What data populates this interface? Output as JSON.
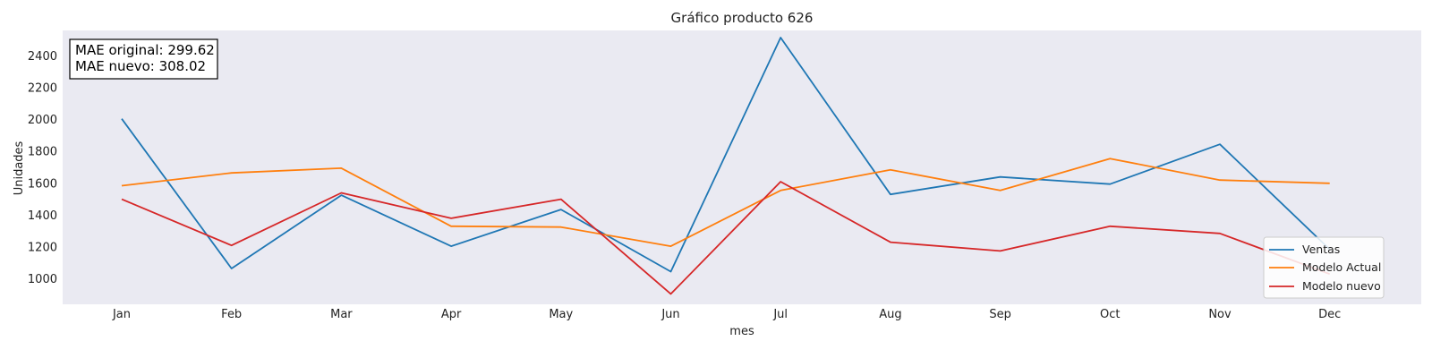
{
  "chart_data": {
    "type": "line",
    "title": "Gráfico producto 626",
    "xlabel": "mes",
    "ylabel": "Unidades",
    "categories": [
      "Jan",
      "Feb",
      "Mar",
      "Apr",
      "May",
      "Jun",
      "Jul",
      "Aug",
      "Sep",
      "Oct",
      "Nov",
      "Dec"
    ],
    "ylim": [
      840,
      2560
    ],
    "yticks": [
      1000,
      1200,
      1400,
      1600,
      1800,
      2000,
      2200,
      2400
    ],
    "grid": false,
    "legend_position": "lower-right",
    "series": [
      {
        "name": "Ventas",
        "color": "#1f77b4",
        "values": [
          2005,
          1065,
          1525,
          1205,
          1435,
          1045,
          2515,
          1530,
          1640,
          1595,
          1845,
          1185
        ]
      },
      {
        "name": "Modelo Actual",
        "color": "#ff7f0e",
        "values": [
          1585,
          1665,
          1695,
          1330,
          1325,
          1205,
          1555,
          1685,
          1555,
          1755,
          1620,
          1600
        ]
      },
      {
        "name": "Modelo nuevo",
        "color": "#d62728",
        "values": [
          1500,
          1210,
          1540,
          1380,
          1500,
          905,
          1610,
          1230,
          1175,
          1330,
          1285,
          1030
        ]
      }
    ],
    "annotation": {
      "line1": "MAE original: 299.62",
      "line2": "MAE nuevo: 308.02"
    }
  }
}
